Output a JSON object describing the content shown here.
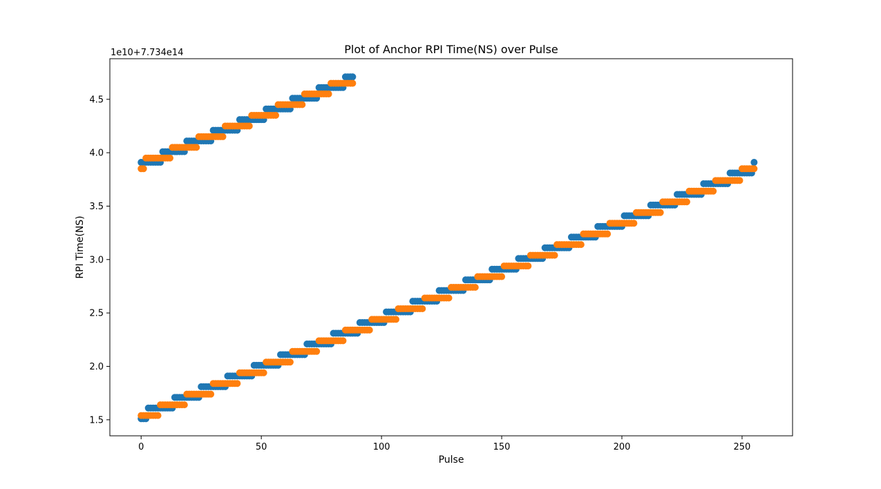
{
  "chart_data": {
    "type": "scatter",
    "title": "Plot of Anchor RPI Time(NS) over Pulse",
    "xlabel": "Pulse",
    "ylabel": "RPI Time(NS)",
    "offset_label": "1e10+7.734e14",
    "xlim": [
      -13,
      271
    ],
    "ylim": [
      1.35,
      4.88
    ],
    "xticks": [
      0,
      50,
      100,
      150,
      200,
      250
    ],
    "yticks": [
      1.5,
      2.0,
      2.5,
      3.0,
      3.5,
      4.0,
      4.5
    ],
    "ytick_labels": [
      "1.5",
      "2.0",
      "2.5",
      "3.0",
      "3.5",
      "4.0",
      "4.5"
    ],
    "legend": "none",
    "grid": false,
    "series": [
      {
        "color": "#1f77b4",
        "segments": [
          {
            "x_start": 0,
            "x_end": 88,
            "steps": [
              [
                0,
                3.91
              ],
              [
                3,
                3.91
              ],
              [
                9,
                4.01
              ],
              [
                19,
                4.11
              ],
              [
                30,
                4.21
              ],
              [
                41,
                4.31
              ],
              [
                52,
                4.41
              ],
              [
                63,
                4.51
              ],
              [
                74,
                4.61
              ],
              [
                85,
                4.71
              ]
            ]
          },
          {
            "x_start": 0,
            "x_end": 255,
            "steps": [
              [
                0,
                1.51
              ],
              [
                3,
                1.61
              ],
              [
                14,
                1.71
              ],
              [
                25,
                1.81
              ],
              [
                36,
                1.91
              ],
              [
                47,
                2.01
              ],
              [
                58,
                2.11
              ],
              [
                69,
                2.21
              ],
              [
                80,
                2.31
              ],
              [
                91,
                2.41
              ],
              [
                102,
                2.51
              ],
              [
                113,
                2.61
              ],
              [
                124,
                2.71
              ],
              [
                135,
                2.81
              ],
              [
                146,
                2.91
              ],
              [
                157,
                3.01
              ],
              [
                168,
                3.11
              ],
              [
                179,
                3.21
              ],
              [
                190,
                3.31
              ],
              [
                201,
                3.41
              ],
              [
                212,
                3.51
              ],
              [
                223,
                3.61
              ],
              [
                234,
                3.71
              ],
              [
                245,
                3.81
              ],
              [
                255,
                3.91
              ]
            ]
          }
        ]
      },
      {
        "color": "#ff7f0e",
        "segments": [
          {
            "x_start": 0,
            "x_end": 88,
            "steps": [
              [
                0,
                3.85
              ],
              [
                2,
                3.95
              ],
              [
                13,
                4.05
              ],
              [
                24,
                4.15
              ],
              [
                35,
                4.25
              ],
              [
                46,
                4.35
              ],
              [
                57,
                4.45
              ],
              [
                68,
                4.55
              ],
              [
                79,
                4.65
              ]
            ]
          },
          {
            "x_start": 0,
            "x_end": 255,
            "steps": [
              [
                0,
                1.54
              ],
              [
                8,
                1.64
              ],
              [
                19,
                1.74
              ],
              [
                30,
                1.84
              ],
              [
                41,
                1.94
              ],
              [
                52,
                2.04
              ],
              [
                63,
                2.14
              ],
              [
                74,
                2.24
              ],
              [
                85,
                2.34
              ],
              [
                96,
                2.44
              ],
              [
                107,
                2.54
              ],
              [
                118,
                2.64
              ],
              [
                129,
                2.74
              ],
              [
                140,
                2.84
              ],
              [
                151,
                2.94
              ],
              [
                162,
                3.04
              ],
              [
                173,
                3.14
              ],
              [
                184,
                3.24
              ],
              [
                195,
                3.34
              ],
              [
                206,
                3.44
              ],
              [
                217,
                3.54
              ],
              [
                228,
                3.64
              ],
              [
                239,
                3.74
              ],
              [
                250,
                3.85
              ]
            ]
          }
        ]
      }
    ]
  }
}
